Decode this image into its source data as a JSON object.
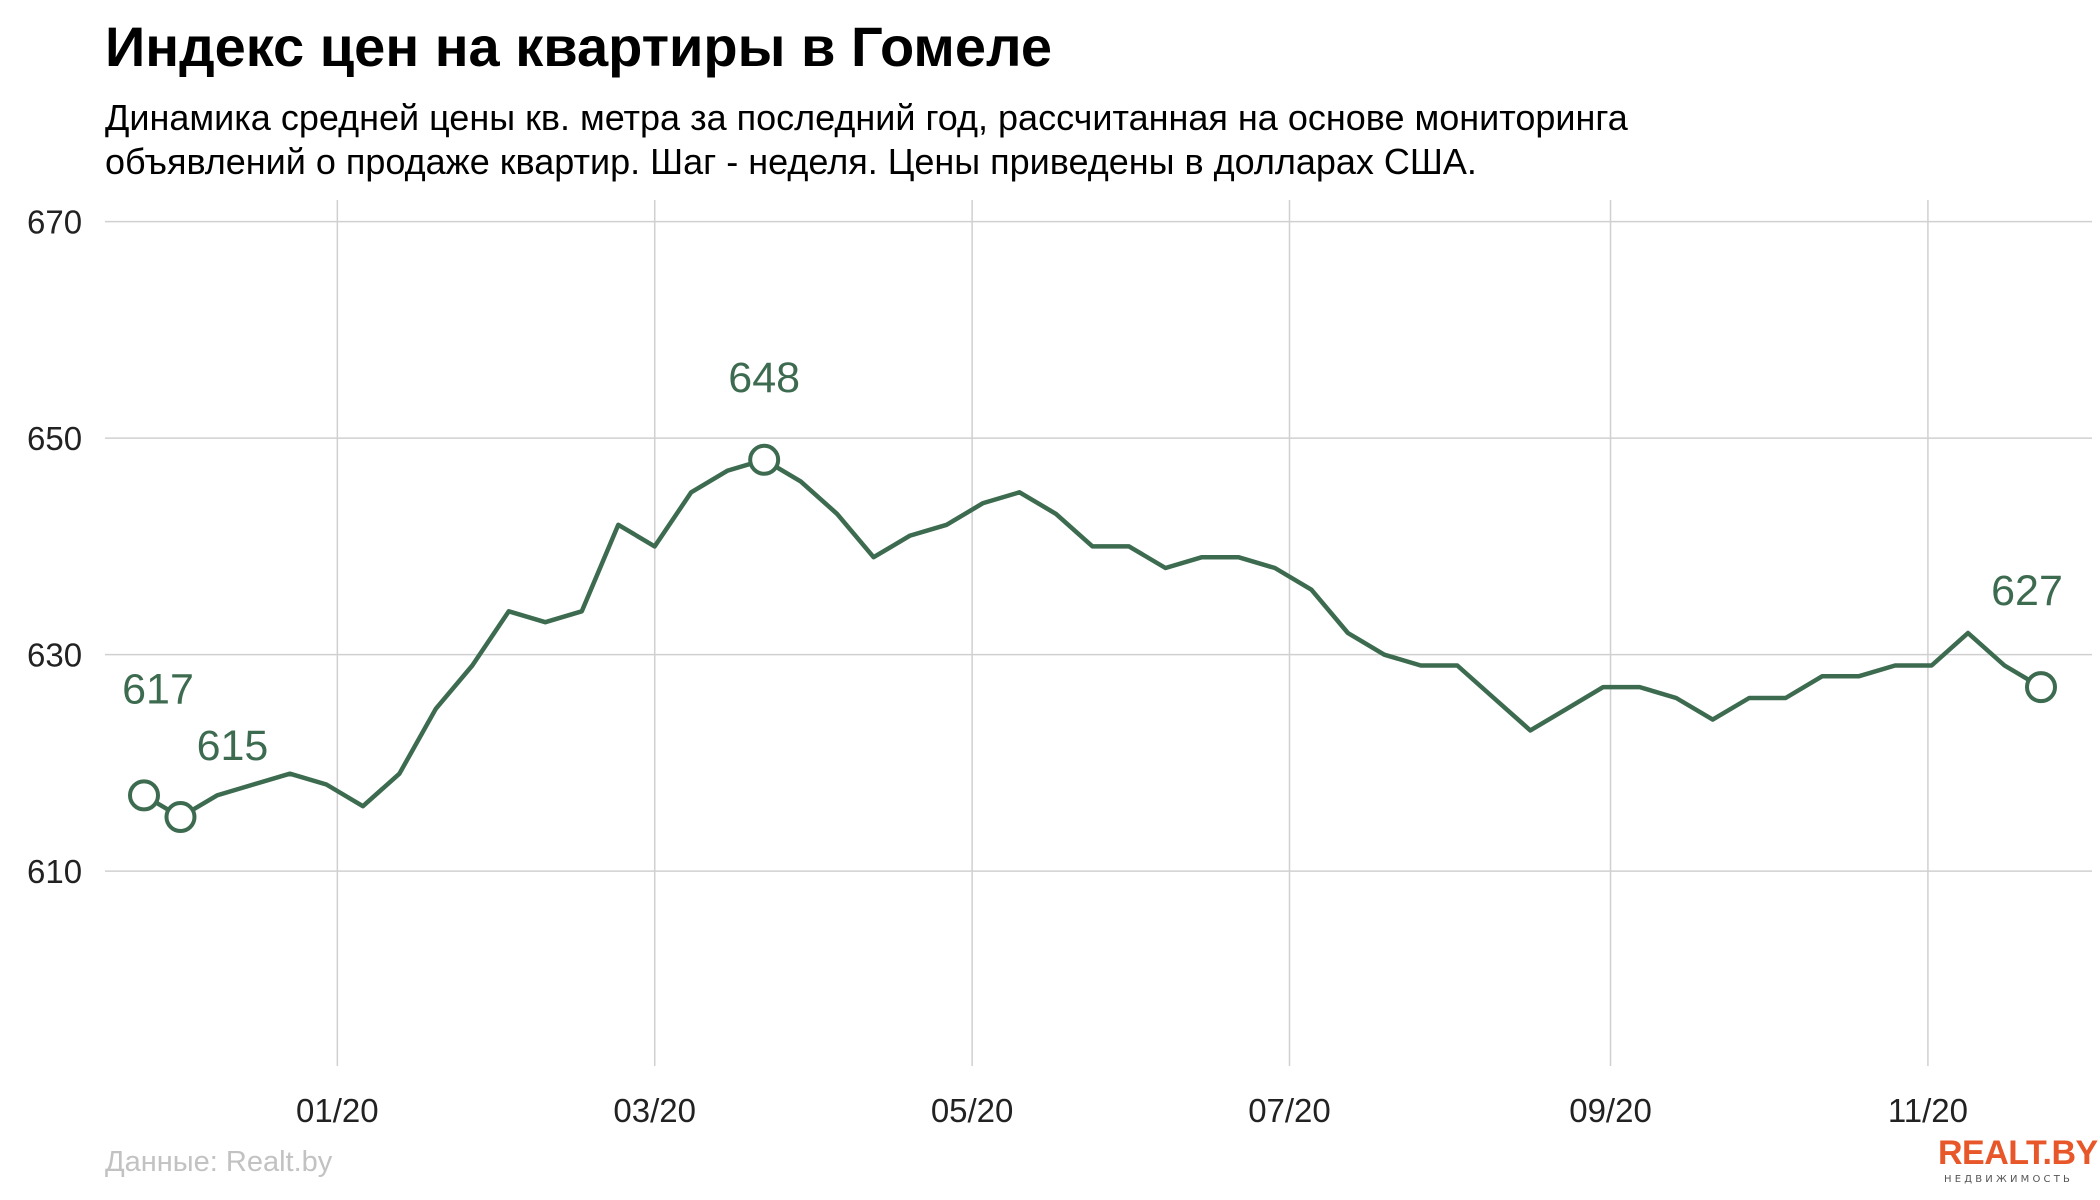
{
  "title": "Индекс цен на квартиры в Гомеле",
  "subtitle_lines": [
    "Динамика средней цены кв. метра за последний год, рассчитанная на основе мониторинга",
    "объявлений о продаже квартир. Шаг - неделя. Цены приведены в долларах США."
  ],
  "source": "Данные: Realt.by",
  "logo": {
    "main": "REALT.BY",
    "sub": "НЕДВИЖИМОСТЬ"
  },
  "colors": {
    "line": "#3d6b50",
    "grid": "#d0d0d0",
    "logo": "#e8572a",
    "source": "#c2c2c2"
  },
  "chart_data": {
    "type": "line",
    "title": "Индекс цен на квартиры в Гомеле",
    "xlabel": "",
    "ylabel": "",
    "ylim": [
      592,
      672
    ],
    "y_ticks": [
      610,
      630,
      650,
      670
    ],
    "x_ticks": [
      {
        "label": "01/20",
        "x": 5.3
      },
      {
        "label": "03/20",
        "x": 14.0
      },
      {
        "label": "05/20",
        "x": 22.7
      },
      {
        "label": "07/20",
        "x": 31.4
      },
      {
        "label": "09/20",
        "x": 40.2
      },
      {
        "label": "11/20",
        "x": 48.9
      }
    ],
    "grid": true,
    "series": [
      {
        "values": [
          617,
          615,
          617,
          618,
          619,
          618,
          616,
          619,
          625,
          629,
          634,
          633,
          634,
          642,
          640,
          645,
          647,
          648,
          646,
          643,
          639,
          641,
          642,
          644,
          645,
          643,
          640,
          640,
          638,
          639,
          639,
          638,
          636,
          632,
          630,
          629,
          629,
          626,
          623,
          625,
          627,
          627,
          626,
          624,
          626,
          626,
          628,
          628,
          629,
          629,
          632,
          629,
          627
        ]
      }
    ],
    "annotations": [
      {
        "index": 0,
        "label": "617"
      },
      {
        "index": 1,
        "label": "615"
      },
      {
        "index": 17,
        "label": "648"
      },
      {
        "index": 52,
        "label": "627"
      }
    ]
  }
}
